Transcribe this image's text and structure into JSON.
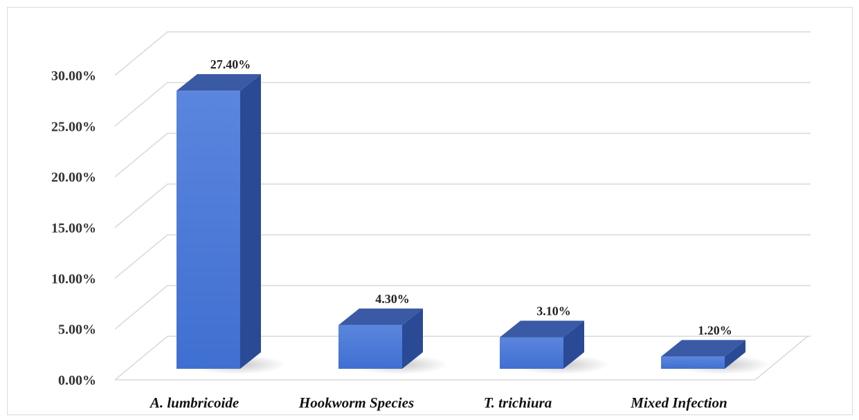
{
  "chart_data": {
    "type": "bar",
    "style": "3d-column",
    "categories": [
      "A. lumbricoide",
      "Hookworm Species",
      "T. trichiura",
      "Mixed Infection"
    ],
    "values": [
      27.4,
      4.3,
      3.1,
      1.2
    ],
    "data_labels": [
      "27.40%",
      "4.30%",
      "3.10%",
      "1.20%"
    ],
    "y_tick_labels": [
      "0.00%",
      "5.00%",
      "10.00%",
      "15.00%",
      "20.00%",
      "25.00%",
      "30.00%"
    ],
    "y_ticks": [
      0,
      5,
      10,
      15,
      20,
      25,
      30
    ],
    "ylim": [
      0,
      30
    ],
    "grid": true,
    "legend": "none",
    "colors": {
      "bar_front": "#3f6fd1",
      "bar_front_light": "#5b86de",
      "bar_side": "#2a4a96",
      "bar_top": "#3a5aa6",
      "gridline": "#d9d9d9",
      "shadow": "#9a9a9a"
    }
  }
}
